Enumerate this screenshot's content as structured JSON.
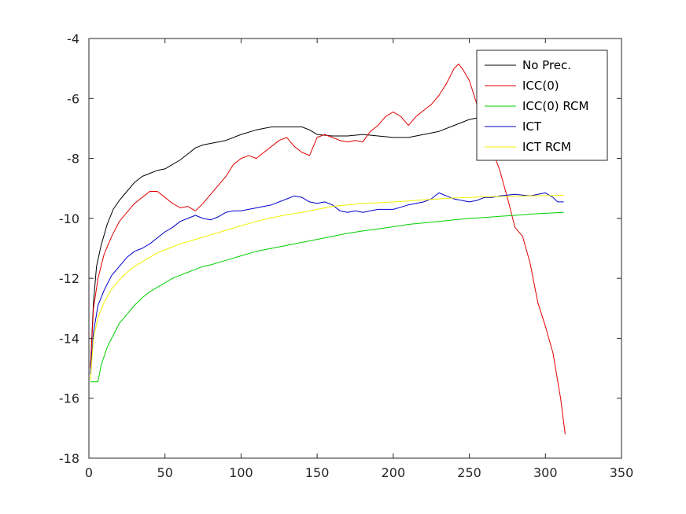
{
  "chart_data": {
    "type": "line",
    "title": "",
    "xlabel": "",
    "ylabel": "",
    "xlim": [
      0,
      350
    ],
    "ylim": [
      -18,
      -4
    ],
    "xticks": [
      0,
      50,
      100,
      150,
      200,
      250,
      300,
      350
    ],
    "yticks": [
      -18,
      -16,
      -14,
      -12,
      -10,
      -8,
      -6,
      -4
    ],
    "grid": false,
    "legend_position": "top-right",
    "series": [
      {
        "name": "No Prec.",
        "color": "#000000",
        "points": [
          [
            1,
            -15.0
          ],
          [
            3,
            -12.8
          ],
          [
            5,
            -11.6
          ],
          [
            8,
            -10.9
          ],
          [
            12,
            -10.2
          ],
          [
            16,
            -9.7
          ],
          [
            20,
            -9.4
          ],
          [
            25,
            -9.1
          ],
          [
            30,
            -8.8
          ],
          [
            35,
            -8.6
          ],
          [
            40,
            -8.5
          ],
          [
            45,
            -8.4
          ],
          [
            50,
            -8.35
          ],
          [
            55,
            -8.2
          ],
          [
            60,
            -8.05
          ],
          [
            65,
            -7.85
          ],
          [
            70,
            -7.65
          ],
          [
            75,
            -7.55
          ],
          [
            80,
            -7.5
          ],
          [
            90,
            -7.4
          ],
          [
            100,
            -7.2
          ],
          [
            110,
            -7.05
          ],
          [
            120,
            -6.95
          ],
          [
            130,
            -6.95
          ],
          [
            140,
            -6.95
          ],
          [
            145,
            -7.05
          ],
          [
            150,
            -7.2
          ],
          [
            160,
            -7.25
          ],
          [
            170,
            -7.25
          ],
          [
            180,
            -7.2
          ],
          [
            190,
            -7.25
          ],
          [
            200,
            -7.3
          ],
          [
            210,
            -7.3
          ],
          [
            220,
            -7.2
          ],
          [
            230,
            -7.1
          ],
          [
            240,
            -6.9
          ],
          [
            250,
            -6.7
          ],
          [
            255,
            -6.65
          ],
          [
            260,
            -6.7
          ],
          [
            265,
            -6.8
          ]
        ]
      },
      {
        "name": "ICC(0)",
        "color": "#e00000",
        "points": [
          [
            1,
            -15.0
          ],
          [
            3,
            -13.0
          ],
          [
            6,
            -12.0
          ],
          [
            10,
            -11.2
          ],
          [
            15,
            -10.6
          ],
          [
            20,
            -10.1
          ],
          [
            25,
            -9.8
          ],
          [
            30,
            -9.5
          ],
          [
            35,
            -9.3
          ],
          [
            40,
            -9.1
          ],
          [
            45,
            -9.1
          ],
          [
            50,
            -9.3
          ],
          [
            55,
            -9.5
          ],
          [
            60,
            -9.65
          ],
          [
            65,
            -9.6
          ],
          [
            70,
            -9.75
          ],
          [
            75,
            -9.5
          ],
          [
            80,
            -9.2
          ],
          [
            85,
            -8.9
          ],
          [
            90,
            -8.6
          ],
          [
            95,
            -8.2
          ],
          [
            100,
            -8.0
          ],
          [
            105,
            -7.9
          ],
          [
            110,
            -8.0
          ],
          [
            115,
            -7.8
          ],
          [
            120,
            -7.6
          ],
          [
            125,
            -7.4
          ],
          [
            130,
            -7.3
          ],
          [
            135,
            -7.6
          ],
          [
            140,
            -7.8
          ],
          [
            145,
            -7.9
          ],
          [
            150,
            -7.3
          ],
          [
            155,
            -7.2
          ],
          [
            160,
            -7.3
          ],
          [
            165,
            -7.4
          ],
          [
            170,
            -7.45
          ],
          [
            175,
            -7.4
          ],
          [
            180,
            -7.45
          ],
          [
            185,
            -7.1
          ],
          [
            190,
            -6.9
          ],
          [
            195,
            -6.6
          ],
          [
            200,
            -6.45
          ],
          [
            205,
            -6.6
          ],
          [
            210,
            -6.9
          ],
          [
            215,
            -6.6
          ],
          [
            220,
            -6.4
          ],
          [
            225,
            -6.2
          ],
          [
            230,
            -5.9
          ],
          [
            235,
            -5.5
          ],
          [
            240,
            -5.0
          ],
          [
            243,
            -4.85
          ],
          [
            246,
            -5.05
          ],
          [
            250,
            -5.4
          ],
          [
            255,
            -6.2
          ],
          [
            260,
            -7.0
          ],
          [
            265,
            -7.7
          ],
          [
            270,
            -8.4
          ],
          [
            275,
            -9.3
          ],
          [
            280,
            -10.3
          ],
          [
            285,
            -10.6
          ],
          [
            290,
            -11.5
          ],
          [
            295,
            -12.8
          ],
          [
            300,
            -13.6
          ],
          [
            305,
            -14.5
          ],
          [
            310,
            -16.0
          ],
          [
            313,
            -17.2
          ]
        ]
      },
      {
        "name": "ICC(0) RCM",
        "color": "#00d000",
        "points": [
          [
            1,
            -15.45
          ],
          [
            6,
            -15.45
          ],
          [
            8,
            -14.9
          ],
          [
            12,
            -14.3
          ],
          [
            16,
            -13.9
          ],
          [
            20,
            -13.5
          ],
          [
            25,
            -13.2
          ],
          [
            30,
            -12.9
          ],
          [
            35,
            -12.65
          ],
          [
            40,
            -12.45
          ],
          [
            45,
            -12.3
          ],
          [
            50,
            -12.15
          ],
          [
            55,
            -12.0
          ],
          [
            60,
            -11.9
          ],
          [
            65,
            -11.8
          ],
          [
            70,
            -11.7
          ],
          [
            75,
            -11.6
          ],
          [
            80,
            -11.55
          ],
          [
            90,
            -11.4
          ],
          [
            100,
            -11.25
          ],
          [
            110,
            -11.1
          ],
          [
            120,
            -11.0
          ],
          [
            130,
            -10.9
          ],
          [
            140,
            -10.8
          ],
          [
            150,
            -10.7
          ],
          [
            160,
            -10.6
          ],
          [
            170,
            -10.5
          ],
          [
            180,
            -10.42
          ],
          [
            190,
            -10.35
          ],
          [
            200,
            -10.28
          ],
          [
            210,
            -10.2
          ],
          [
            220,
            -10.15
          ],
          [
            230,
            -10.1
          ],
          [
            240,
            -10.05
          ],
          [
            250,
            -10.0
          ],
          [
            260,
            -9.97
          ],
          [
            270,
            -9.93
          ],
          [
            280,
            -9.9
          ],
          [
            290,
            -9.86
          ],
          [
            300,
            -9.83
          ],
          [
            312,
            -9.8
          ]
        ]
      },
      {
        "name": "ICT",
        "color": "#0000cc",
        "points": [
          [
            1,
            -15.2
          ],
          [
            3,
            -13.8
          ],
          [
            6,
            -12.9
          ],
          [
            10,
            -12.4
          ],
          [
            15,
            -11.9
          ],
          [
            20,
            -11.6
          ],
          [
            25,
            -11.3
          ],
          [
            30,
            -11.1
          ],
          [
            35,
            -11.0
          ],
          [
            40,
            -10.85
          ],
          [
            45,
            -10.65
          ],
          [
            50,
            -10.45
          ],
          [
            55,
            -10.3
          ],
          [
            60,
            -10.1
          ],
          [
            65,
            -10.0
          ],
          [
            70,
            -9.9
          ],
          [
            75,
            -10.0
          ],
          [
            80,
            -10.05
          ],
          [
            85,
            -9.95
          ],
          [
            90,
            -9.8
          ],
          [
            95,
            -9.75
          ],
          [
            100,
            -9.75
          ],
          [
            110,
            -9.65
          ],
          [
            120,
            -9.55
          ],
          [
            125,
            -9.45
          ],
          [
            130,
            -9.35
          ],
          [
            135,
            -9.25
          ],
          [
            140,
            -9.3
          ],
          [
            145,
            -9.45
          ],
          [
            150,
            -9.5
          ],
          [
            155,
            -9.45
          ],
          [
            160,
            -9.55
          ],
          [
            165,
            -9.75
          ],
          [
            170,
            -9.8
          ],
          [
            175,
            -9.75
          ],
          [
            180,
            -9.8
          ],
          [
            185,
            -9.75
          ],
          [
            190,
            -9.7
          ],
          [
            200,
            -9.7
          ],
          [
            210,
            -9.55
          ],
          [
            220,
            -9.45
          ],
          [
            225,
            -9.35
          ],
          [
            230,
            -9.15
          ],
          [
            235,
            -9.25
          ],
          [
            240,
            -9.35
          ],
          [
            250,
            -9.45
          ],
          [
            255,
            -9.4
          ],
          [
            260,
            -9.3
          ],
          [
            265,
            -9.3
          ],
          [
            270,
            -9.25
          ],
          [
            280,
            -9.2
          ],
          [
            290,
            -9.25
          ],
          [
            300,
            -9.15
          ],
          [
            305,
            -9.3
          ],
          [
            308,
            -9.45
          ],
          [
            312,
            -9.45
          ]
        ]
      },
      {
        "name": "ICT RCM",
        "color": "#f0f000",
        "points": [
          [
            1,
            -15.4
          ],
          [
            3,
            -14.0
          ],
          [
            6,
            -13.3
          ],
          [
            10,
            -12.8
          ],
          [
            15,
            -12.35
          ],
          [
            20,
            -12.05
          ],
          [
            25,
            -11.8
          ],
          [
            30,
            -11.6
          ],
          [
            35,
            -11.45
          ],
          [
            40,
            -11.3
          ],
          [
            45,
            -11.15
          ],
          [
            50,
            -11.05
          ],
          [
            55,
            -10.95
          ],
          [
            60,
            -10.85
          ],
          [
            70,
            -10.7
          ],
          [
            80,
            -10.55
          ],
          [
            90,
            -10.4
          ],
          [
            100,
            -10.25
          ],
          [
            110,
            -10.1
          ],
          [
            120,
            -9.98
          ],
          [
            130,
            -9.88
          ],
          [
            140,
            -9.8
          ],
          [
            150,
            -9.7
          ],
          [
            160,
            -9.6
          ],
          [
            170,
            -9.55
          ],
          [
            180,
            -9.5
          ],
          [
            190,
            -9.48
          ],
          [
            200,
            -9.45
          ],
          [
            210,
            -9.42
          ],
          [
            220,
            -9.38
          ],
          [
            230,
            -9.35
          ],
          [
            240,
            -9.32
          ],
          [
            250,
            -9.3
          ],
          [
            260,
            -9.28
          ],
          [
            270,
            -9.27
          ],
          [
            280,
            -9.26
          ],
          [
            290,
            -9.25
          ],
          [
            300,
            -9.24
          ],
          [
            312,
            -9.23
          ]
        ]
      }
    ]
  }
}
